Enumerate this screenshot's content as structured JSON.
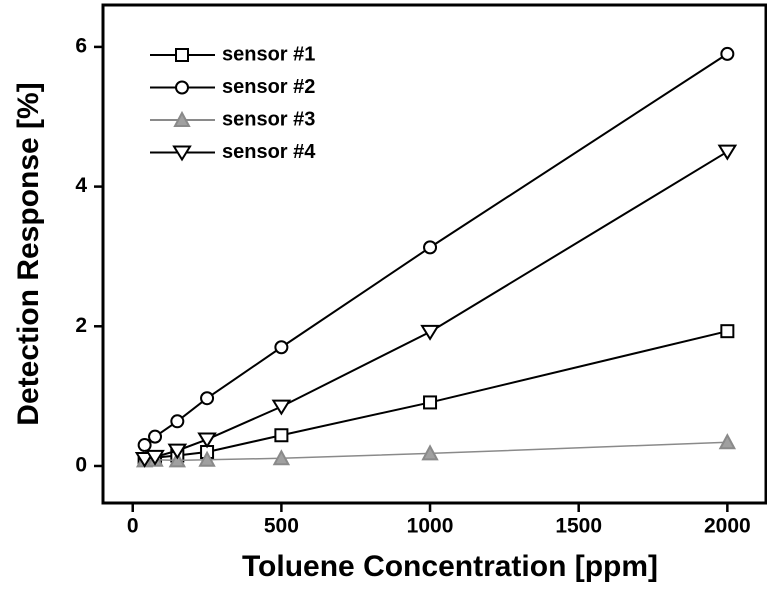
{
  "chart_data": {
    "type": "line",
    "x_label": "Toluene Concentration  [ppm]",
    "y_label": "Detection Response  [%]",
    "xlim": [
      -100,
      2130
    ],
    "ylim": [
      -0.53,
      6.6
    ],
    "xticks": [
      0,
      500,
      1000,
      1500,
      2000
    ],
    "yticks": [
      0,
      2,
      4,
      6
    ],
    "legend": "upper-left",
    "x": [
      40,
      75,
      150,
      250,
      500,
      1000,
      2000
    ],
    "series": [
      {
        "name": "sensor #1",
        "color": "#000000",
        "marker": "square",
        "values": [
          0.1,
          0.12,
          0.15,
          0.2,
          0.44,
          0.91,
          1.93
        ]
      },
      {
        "name": "sensor #2",
        "color": "#000000",
        "marker": "circle",
        "values": [
          0.3,
          0.42,
          0.64,
          0.97,
          1.7,
          3.13,
          5.9
        ]
      },
      {
        "name": "sensor #3",
        "color": "#8a8a8a",
        "marker": "triangle-up",
        "values": [
          0.08,
          0.09,
          0.08,
          0.09,
          0.11,
          0.18,
          0.34
        ]
      },
      {
        "name": "sensor #4",
        "color": "#000000",
        "marker": "triangle-down",
        "values": [
          0.1,
          0.13,
          0.22,
          0.38,
          0.85,
          1.92,
          4.5
        ]
      }
    ]
  }
}
